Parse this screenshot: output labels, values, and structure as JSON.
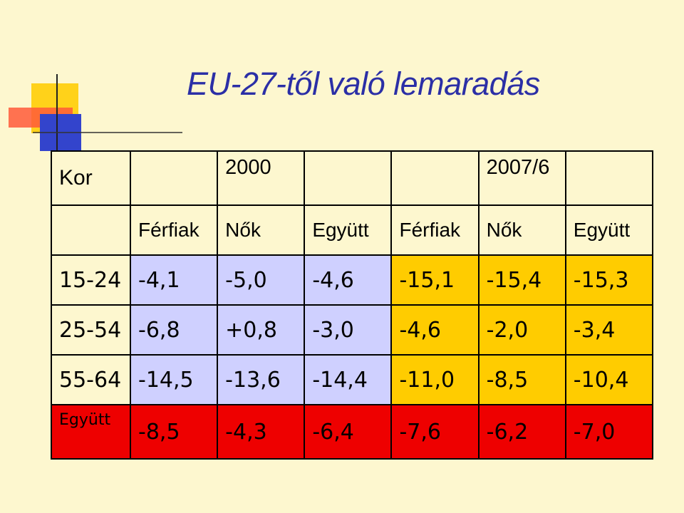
{
  "title": "EU-27-től való lemaradás",
  "table": {
    "corner_label": "Kor",
    "period_headers": [
      "",
      "2000",
      "",
      "",
      "2007/6",
      ""
    ],
    "sub_headers": [
      "Férfiak",
      "Nők",
      "Együtt",
      "Férfiak",
      "Nők",
      "Együtt"
    ],
    "rows": [
      {
        "label": "15-24",
        "values": [
          "-4,1",
          "-5,0",
          "-4,6",
          "-15,1",
          "-15,4",
          "-15,3"
        ]
      },
      {
        "label": "25-54",
        "values": [
          "-6,8",
          "+0,8",
          "-3,0",
          "-4,6",
          "-2,0",
          "-3,4"
        ]
      },
      {
        "label": "55-64",
        "values": [
          "-14,5",
          "-13,6",
          "-14,4",
          "-11,0",
          "-8,5",
          "-10,4"
        ]
      },
      {
        "label": "Együtt",
        "values": [
          "-8,5",
          "-4,3",
          "-6,4",
          "-7,6",
          "-6,2",
          "-7,0"
        ]
      }
    ]
  },
  "colors": {
    "background": "#fdf7cf",
    "title": "#2b2fa6",
    "group_2000": "#cfd0ff",
    "group_2007": "#ffcc00",
    "total_row": "#ee0000"
  }
}
